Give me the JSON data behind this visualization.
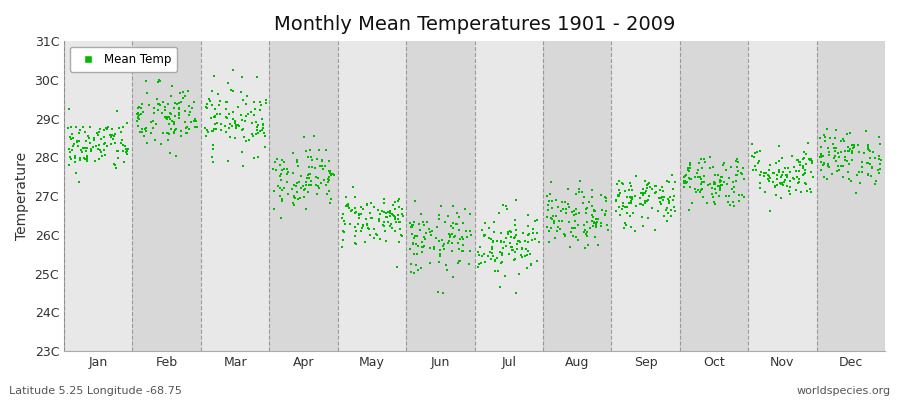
{
  "title": "Monthly Mean Temperatures 1901 - 2009",
  "ylabel": "Temperature",
  "xlabel_bottom_left": "Latitude 5.25 Longitude -68.75",
  "xlabel_bottom_right": "worldspecies.org",
  "legend_label": "Mean Temp",
  "marker_color": "#00bb00",
  "marker_size": 3,
  "bg_light": "#e8e8e8",
  "bg_dark": "#d8d8d8",
  "ylim": [
    23,
    31
  ],
  "yticks": [
    23,
    24,
    25,
    26,
    27,
    28,
    29,
    30,
    31
  ],
  "ytick_labels": [
    "23C",
    "24C",
    "25C",
    "26C",
    "27C",
    "28C",
    "29C",
    "30C",
    "31C"
  ],
  "month_names": [
    "Jan",
    "Feb",
    "Mar",
    "Apr",
    "May",
    "Jun",
    "Jul",
    "Aug",
    "Sep",
    "Oct",
    "Nov",
    "Dec"
  ],
  "month_means": [
    28.3,
    29.0,
    29.0,
    27.5,
    26.4,
    25.8,
    25.8,
    26.4,
    26.9,
    27.4,
    27.6,
    28.0
  ],
  "month_stds": [
    0.35,
    0.45,
    0.45,
    0.4,
    0.35,
    0.45,
    0.45,
    0.38,
    0.35,
    0.35,
    0.35,
    0.35
  ],
  "n_years": 109,
  "seed": 42,
  "figsize": [
    9.0,
    4.0
  ],
  "dpi": 100
}
